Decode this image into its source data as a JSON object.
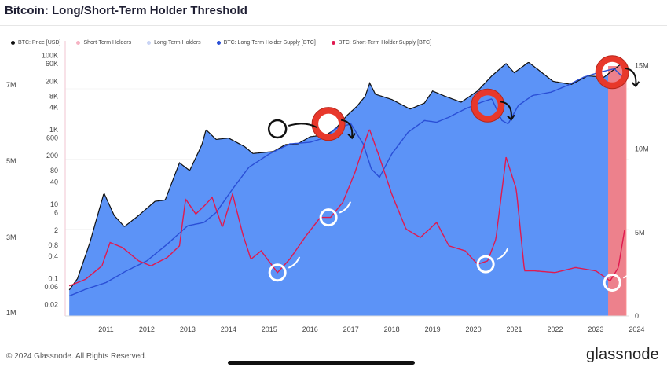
{
  "title": "Bitcoin: Long/Short-Term Holder Threshold",
  "legend": [
    {
      "label": "BTC: Price [USD]",
      "color": "#111111"
    },
    {
      "label": "Short-Term Holders",
      "color": "#f6b3c3"
    },
    {
      "label": "Long-Term Holders",
      "color": "#c9d4f5"
    },
    {
      "label": "BTC: Long-Term Holder Supply [BTC]",
      "color": "#2a4fd6"
    },
    {
      "label": "BTC: Short-Term Holder Supply [BTC]",
      "color": "#e0194f"
    }
  ],
  "footer": {
    "copyright": "© 2024 Glassnode. All Rights Reserved.",
    "brand": "glassnode"
  },
  "chart_data": {
    "type": "line",
    "title": "Bitcoin: Long/Short-Term Holder Threshold",
    "x_ticks": [
      "2011",
      "2012",
      "2013",
      "2014",
      "2015",
      "2016",
      "2017",
      "2018",
      "2019",
      "2020",
      "2021",
      "2022",
      "2023",
      "2024"
    ],
    "y_left_supply_ticks": [
      "1M",
      "3M",
      "5M",
      "7M"
    ],
    "y_price_ticks": [
      "100K",
      "60K",
      "20K",
      "8K",
      "4K",
      "1K",
      "600",
      "200",
      "80",
      "40",
      "10",
      "6",
      "2",
      "0.8",
      "0.4",
      "0.1",
      "0.06",
      "0.02"
    ],
    "y_right_ticks": [
      "15M",
      "10M",
      "5M",
      "0"
    ],
    "price_scale": "log",
    "series": [
      {
        "name": "BTC: Price [USD]",
        "values": [
          [
            2010.6,
            0.05
          ],
          [
            2010.8,
            0.1
          ],
          [
            2011.1,
            0.9
          ],
          [
            2011.45,
            20
          ],
          [
            2011.7,
            5
          ],
          [
            2011.95,
            2.5
          ],
          [
            2012.3,
            5
          ],
          [
            2012.7,
            12
          ],
          [
            2012.95,
            13
          ],
          [
            2013.3,
            130
          ],
          [
            2013.55,
            80
          ],
          [
            2013.85,
            400
          ],
          [
            2013.95,
            1000
          ],
          [
            2014.2,
            550
          ],
          [
            2014.5,
            600
          ],
          [
            2014.9,
            350
          ],
          [
            2015.1,
            230
          ],
          [
            2015.6,
            260
          ],
          [
            2015.9,
            400
          ],
          [
            2016.2,
            420
          ],
          [
            2016.5,
            650
          ],
          [
            2016.9,
            740
          ],
          [
            2017.1,
            1000
          ],
          [
            2017.4,
            2400
          ],
          [
            2017.65,
            4300
          ],
          [
            2017.85,
            8000
          ],
          [
            2017.96,
            18000
          ],
          [
            2018.1,
            9000
          ],
          [
            2018.5,
            6500
          ],
          [
            2018.95,
            3600
          ],
          [
            2019.3,
            5200
          ],
          [
            2019.5,
            11000
          ],
          [
            2019.8,
            8000
          ],
          [
            2020.2,
            5500
          ],
          [
            2020.6,
            11000
          ],
          [
            2020.95,
            28000
          ],
          [
            2021.3,
            60000
          ],
          [
            2021.5,
            34000
          ],
          [
            2021.85,
            65000
          ],
          [
            2022.1,
            40000
          ],
          [
            2022.45,
            20000
          ],
          [
            2022.9,
            16500
          ],
          [
            2023.3,
            28000
          ],
          [
            2023.7,
            26000
          ],
          [
            2023.95,
            42000
          ],
          [
            2024.2,
            70000
          ]
        ]
      },
      {
        "name": "BTC: Long-Term Holder Supply [BTC]",
        "values": [
          [
            2010.6,
            1.2
          ],
          [
            2011.0,
            1.6
          ],
          [
            2011.5,
            2.0
          ],
          [
            2012.0,
            2.7
          ],
          [
            2012.5,
            3.3
          ],
          [
            2013.0,
            4.3
          ],
          [
            2013.5,
            5.4
          ],
          [
            2013.9,
            5.6
          ],
          [
            2014.2,
            6.2
          ],
          [
            2014.6,
            7.6
          ],
          [
            2015.0,
            8.9
          ],
          [
            2015.5,
            9.7
          ],
          [
            2016.0,
            10.3
          ],
          [
            2016.5,
            10.4
          ],
          [
            2016.9,
            10.7
          ],
          [
            2017.1,
            11.2
          ],
          [
            2017.5,
            11.5
          ],
          [
            2017.8,
            10.3
          ],
          [
            2018.0,
            8.8
          ],
          [
            2018.2,
            8.3
          ],
          [
            2018.5,
            9.7
          ],
          [
            2018.9,
            11.0
          ],
          [
            2019.3,
            11.7
          ],
          [
            2019.6,
            11.6
          ],
          [
            2019.9,
            11.9
          ],
          [
            2020.3,
            12.4
          ],
          [
            2020.7,
            12.8
          ],
          [
            2020.95,
            13.0
          ],
          [
            2021.2,
            11.7
          ],
          [
            2021.35,
            11.5
          ],
          [
            2021.6,
            12.6
          ],
          [
            2021.95,
            13.2
          ],
          [
            2022.4,
            13.4
          ],
          [
            2022.8,
            13.8
          ],
          [
            2023.2,
            14.3
          ],
          [
            2023.6,
            14.6
          ],
          [
            2023.95,
            14.8
          ],
          [
            2024.2,
            14.2
          ]
        ]
      },
      {
        "name": "BTC: Short-Term Holder Supply [BTC]",
        "values": [
          [
            2010.6,
            1.8
          ],
          [
            2011.0,
            2.2
          ],
          [
            2011.4,
            3.0
          ],
          [
            2011.6,
            4.4
          ],
          [
            2011.9,
            4.1
          ],
          [
            2012.3,
            3.3
          ],
          [
            2012.6,
            3.0
          ],
          [
            2013.0,
            3.5
          ],
          [
            2013.3,
            4.2
          ],
          [
            2013.45,
            7.0
          ],
          [
            2013.7,
            6.1
          ],
          [
            2013.95,
            6.7
          ],
          [
            2014.1,
            7.1
          ],
          [
            2014.35,
            5.3
          ],
          [
            2014.6,
            7.3
          ],
          [
            2014.85,
            4.9
          ],
          [
            2015.05,
            3.4
          ],
          [
            2015.3,
            3.9
          ],
          [
            2015.7,
            2.6
          ],
          [
            2016.0,
            3.4
          ],
          [
            2016.4,
            4.8
          ],
          [
            2016.75,
            5.9
          ],
          [
            2017.0,
            5.9
          ],
          [
            2017.3,
            6.8
          ],
          [
            2017.6,
            8.6
          ],
          [
            2017.95,
            11.2
          ],
          [
            2018.2,
            9.5
          ],
          [
            2018.5,
            7.3
          ],
          [
            2018.85,
            5.2
          ],
          [
            2019.2,
            4.7
          ],
          [
            2019.6,
            5.6
          ],
          [
            2019.9,
            4.2
          ],
          [
            2020.3,
            3.9
          ],
          [
            2020.6,
            3.1
          ],
          [
            2020.85,
            3.3
          ],
          [
            2021.05,
            4.6
          ],
          [
            2021.3,
            9.5
          ],
          [
            2021.55,
            7.6
          ],
          [
            2021.75,
            2.7
          ],
          [
            2022.0,
            2.7
          ],
          [
            2022.5,
            2.6
          ],
          [
            2023.0,
            2.9
          ],
          [
            2023.5,
            2.7
          ],
          [
            2023.85,
            2.1
          ],
          [
            2024.05,
            2.9
          ],
          [
            2024.2,
            5.1
          ]
        ]
      }
    ],
    "shaded_region": {
      "from": 2023.8,
      "to": 2024.25,
      "color": "#f47f86"
    },
    "annotations": [
      {
        "type": "marker",
        "style": "red-ring",
        "at": [
          2016.95,
          11.5
        ]
      },
      {
        "type": "marker",
        "style": "red-ring",
        "at": [
          2020.85,
          12.6
        ]
      },
      {
        "type": "marker",
        "style": "red-ring",
        "at": [
          2023.9,
          14.6
        ]
      },
      {
        "type": "marker",
        "style": "black-ring",
        "at": [
          2015.7,
          11.2
        ]
      },
      {
        "type": "marker",
        "style": "white-ring",
        "at": [
          2015.7,
          2.6
        ]
      },
      {
        "type": "marker",
        "style": "white-ring",
        "at": [
          2016.95,
          5.9
        ]
      },
      {
        "type": "marker",
        "style": "white-ring",
        "at": [
          2020.8,
          3.1
        ]
      },
      {
        "type": "marker",
        "style": "white-ring",
        "at": [
          2023.9,
          2.0
        ]
      }
    ],
    "accent_colors": {
      "lth_area": "#5c93f7",
      "sth_area": "#f8c9d6",
      "price": "#111111",
      "sth_line": "#e0194f",
      "lth_line": "#2a4fd6"
    }
  }
}
